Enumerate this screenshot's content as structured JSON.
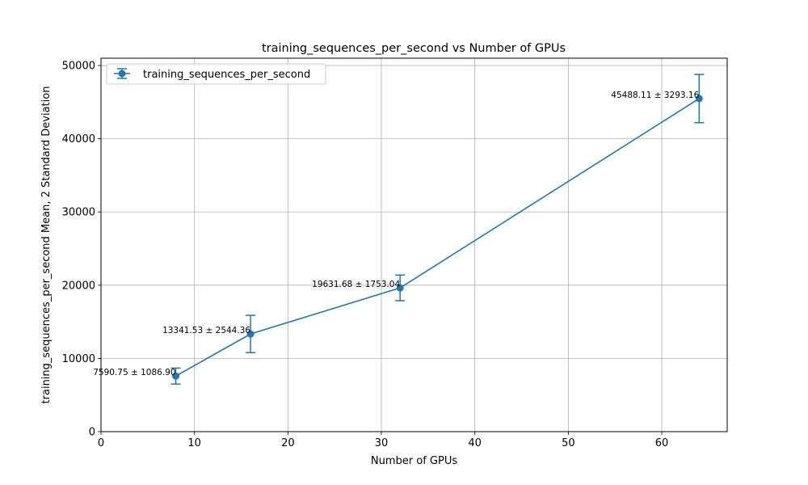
{
  "chart_data": {
    "type": "line",
    "title": "training_sequences_per_second vs Number of GPUs",
    "xlabel": "Number of GPUs",
    "ylabel": "training_sequences_per_second Mean, 2 Standard Deviation",
    "xlim": [
      0,
      67
    ],
    "ylim": [
      0,
      51000
    ],
    "xticks": [
      0,
      10,
      20,
      30,
      40,
      50,
      60
    ],
    "yticks": [
      0,
      10000,
      20000,
      30000,
      40000,
      50000
    ],
    "grid": true,
    "legend_position": "top-left",
    "colors": {
      "series": "#1f77b4",
      "grid": "#b0b0b0"
    },
    "series": [
      {
        "name": "training_sequences_per_second",
        "x": [
          8,
          16,
          32,
          64
        ],
        "y": [
          7590.75,
          13341.53,
          19631.68,
          45488.11
        ],
        "error": [
          1086.9,
          2544.36,
          1753.04,
          3293.16
        ]
      }
    ],
    "annotations": [
      "7590.75 ± 1086.90",
      "13341.53 ± 2544.36",
      "19631.68 ± 1753.04",
      "45488.11 ± 3293.16"
    ]
  }
}
